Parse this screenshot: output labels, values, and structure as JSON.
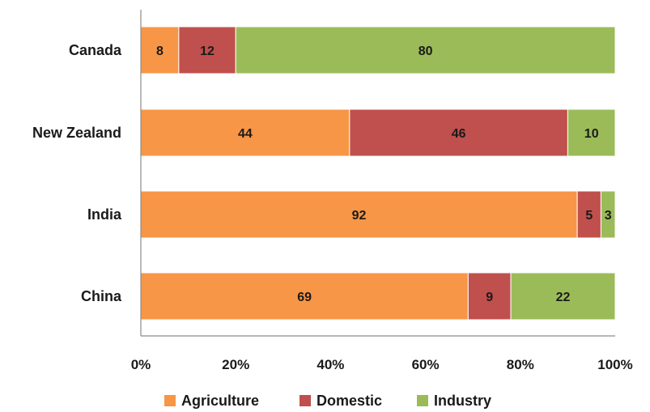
{
  "chart_data": {
    "type": "bar",
    "orientation": "horizontal",
    "stacked": "percent",
    "categories": [
      "Canada",
      "New Zealand",
      "India",
      "China"
    ],
    "series": [
      {
        "name": "Agriculture",
        "values": [
          8,
          44,
          92,
          69
        ],
        "color": "#F79646"
      },
      {
        "name": "Domestic",
        "values": [
          12,
          46,
          5,
          9
        ],
        "color": "#C0504D"
      },
      {
        "name": "Industry",
        "values": [
          80,
          10,
          3,
          22
        ],
        "color": "#9BBB59"
      }
    ],
    "xaxis": {
      "ticks": [
        "0%",
        "20%",
        "40%",
        "60%",
        "80%",
        "100%"
      ],
      "range": [
        0,
        100
      ]
    },
    "title": "",
    "xlabel": "",
    "ylabel": "",
    "grid": false,
    "data_labels": true,
    "legend_position": "bottom"
  }
}
